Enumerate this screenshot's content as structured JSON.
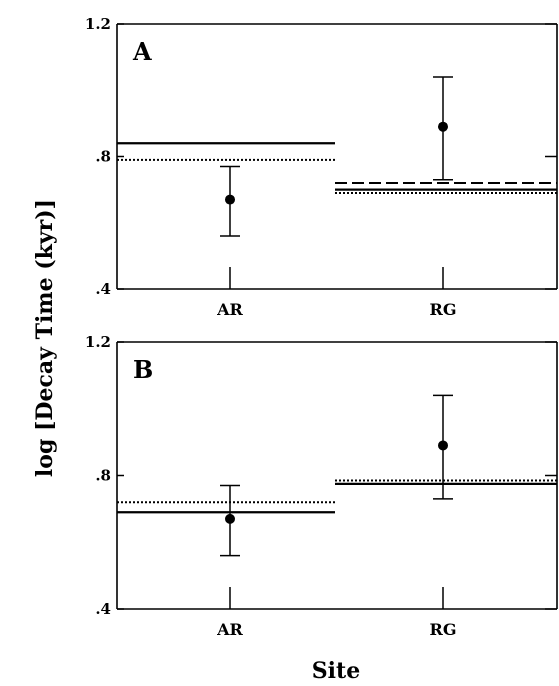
{
  "figure": {
    "ylabel": "log [Decay Time (kyr)]",
    "xlabel": "Site"
  },
  "chart_data": [
    {
      "type": "scatter",
      "panel_label": "A",
      "categories": [
        "AR",
        "RG"
      ],
      "ylim": [
        0.4,
        1.2
      ],
      "yticks": [
        0.4,
        0.8,
        1.2
      ],
      "ytick_labels": [
        ".4",
        ".8",
        "1.2"
      ],
      "points": [
        {
          "category": "AR",
          "y": 0.67,
          "err_low": 0.56,
          "err_high": 0.77
        },
        {
          "category": "RG",
          "y": 0.89,
          "err_low": 0.73,
          "err_high": 1.04
        }
      ],
      "reference_lines": [
        {
          "category": "AR",
          "style": "solid",
          "y": 0.84
        },
        {
          "category": "AR",
          "style": "dotted",
          "y": 0.79
        },
        {
          "category": "RG",
          "style": "dashed",
          "y": 0.72
        },
        {
          "category": "RG",
          "style": "solid",
          "y": 0.7
        },
        {
          "category": "RG",
          "style": "dotted",
          "y": 0.69
        }
      ],
      "grid": false
    },
    {
      "type": "scatter",
      "panel_label": "B",
      "categories": [
        "AR",
        "RG"
      ],
      "ylim": [
        0.4,
        1.2
      ],
      "yticks": [
        0.4,
        0.8,
        1.2
      ],
      "ytick_labels": [
        ".4",
        ".8",
        "1.2"
      ],
      "points": [
        {
          "category": "AR",
          "y": 0.67,
          "err_low": 0.56,
          "err_high": 0.77
        },
        {
          "category": "RG",
          "y": 0.89,
          "err_low": 0.73,
          "err_high": 1.04
        }
      ],
      "reference_lines": [
        {
          "category": "AR",
          "style": "dotted",
          "y": 0.72
        },
        {
          "category": "AR",
          "style": "solid",
          "y": 0.69
        },
        {
          "category": "RG",
          "style": "dotted",
          "y": 0.785
        },
        {
          "category": "RG",
          "style": "solid",
          "y": 0.775
        }
      ],
      "grid": false
    }
  ]
}
